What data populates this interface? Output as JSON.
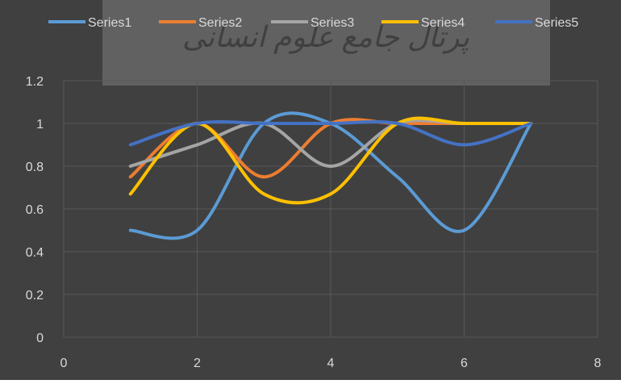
{
  "chart_data": {
    "type": "line",
    "smooth": true,
    "title": "",
    "xlabel": "",
    "ylabel": "",
    "xlim": [
      0,
      8
    ],
    "ylim": [
      0,
      1.2
    ],
    "x_ticks": [
      0,
      2,
      4,
      6,
      8
    ],
    "y_ticks": [
      0,
      0.2,
      0.4,
      0.6,
      0.8,
      1,
      1.2
    ],
    "x_tick_labels": [
      "0",
      "2",
      "4",
      "6",
      "8"
    ],
    "y_tick_labels": [
      "0",
      "0.2",
      "0.4",
      "0.6",
      "0.8",
      "1",
      "1.2"
    ],
    "grid": true,
    "legend_position": "top",
    "background": "#404040",
    "x": [
      1,
      2,
      3,
      4,
      5,
      6,
      7
    ],
    "series": [
      {
        "name": "Series1",
        "color": "#5b9bd5",
        "values": [
          0.5,
          0.5,
          1.0,
          1.0,
          0.75,
          0.5,
          1.0
        ]
      },
      {
        "name": "Series2",
        "color": "#ed7d31",
        "values": [
          0.75,
          1.0,
          0.75,
          1.0,
          1.0,
          1.0,
          1.0
        ]
      },
      {
        "name": "Series3",
        "color": "#a5a5a5",
        "values": [
          0.8,
          0.9,
          1.0,
          0.8,
          1.0,
          1.0,
          1.0
        ]
      },
      {
        "name": "Series4",
        "color": "#ffc000",
        "values": [
          0.67,
          1.0,
          0.67,
          0.67,
          1.0,
          1.0,
          1.0
        ]
      },
      {
        "name": "Series5",
        "color": "#4472c4",
        "values": [
          0.9,
          1.0,
          1.0,
          1.0,
          1.0,
          0.9,
          1.0
        ]
      }
    ]
  },
  "watermark": {
    "text": "پرتال جامع علوم انسانی"
  }
}
